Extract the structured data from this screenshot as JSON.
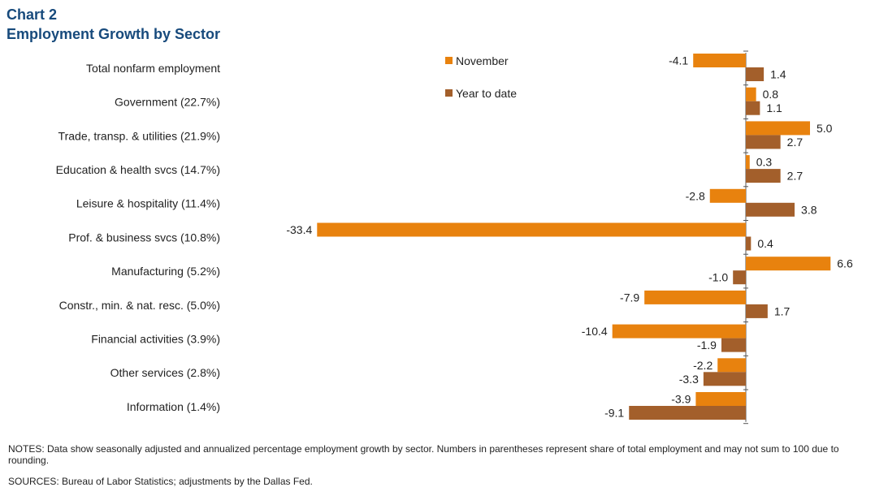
{
  "header": {
    "chart_number": "Chart 2",
    "title": "Employment  Growth by Sector"
  },
  "chart_data": {
    "type": "bar",
    "orientation": "horizontal",
    "categories": [
      "Total nonfarm employment",
      "Government (22.7%)",
      "Trade, transp. & utilities (21.9%)",
      "Education & health svcs (14.7%)",
      "Leisure & hospitality (11.4%)",
      "Prof. & business svcs (10.8%)",
      "Manufacturing (5.2%)",
      "Constr., min. & nat. resc. (5.0%)",
      "Financial activities (3.9%)",
      "Other services (2.8%)",
      "Information (1.4%)"
    ],
    "series": [
      {
        "name": "November",
        "color": "#e8820e",
        "values": [
          -4.1,
          0.8,
          5.0,
          0.3,
          -2.8,
          -33.4,
          6.6,
          -7.9,
          -10.4,
          -2.2,
          -3.9
        ],
        "labels": [
          "-4.1",
          "0.8",
          "5.0",
          "0.3",
          "-2.8",
          "-33.4",
          "6.6",
          "-7.9",
          "-10.4",
          "-2.2",
          "-3.9"
        ]
      },
      {
        "name": "Year to date",
        "color": "#a35f2b",
        "values": [
          1.4,
          1.1,
          2.7,
          2.7,
          3.8,
          0.4,
          -1.0,
          1.7,
          -1.9,
          -3.3,
          -9.1
        ],
        "labels": [
          "1.4",
          "1.1",
          "2.7",
          "2.7",
          "3.8",
          "0.4",
          "-1.0",
          "1.7",
          "-1.9",
          "-3.3",
          "-9.1"
        ]
      }
    ],
    "title": "Employment  Growth by Sector",
    "xlabel": "",
    "ylabel": "",
    "xlim": [
      -36,
      8
    ],
    "grid": false,
    "legend_position": "top-center"
  },
  "footnotes": {
    "notes": "NOTES:  Data show seasonally adjusted and annualized percentage employment  growth by sector. Numbers in parentheses represent share of total employment and may not sum to 100 due to rounding.",
    "sources": "SOURCES:  Bureau of Labor Statistics; adjustments by the Dallas Fed."
  }
}
